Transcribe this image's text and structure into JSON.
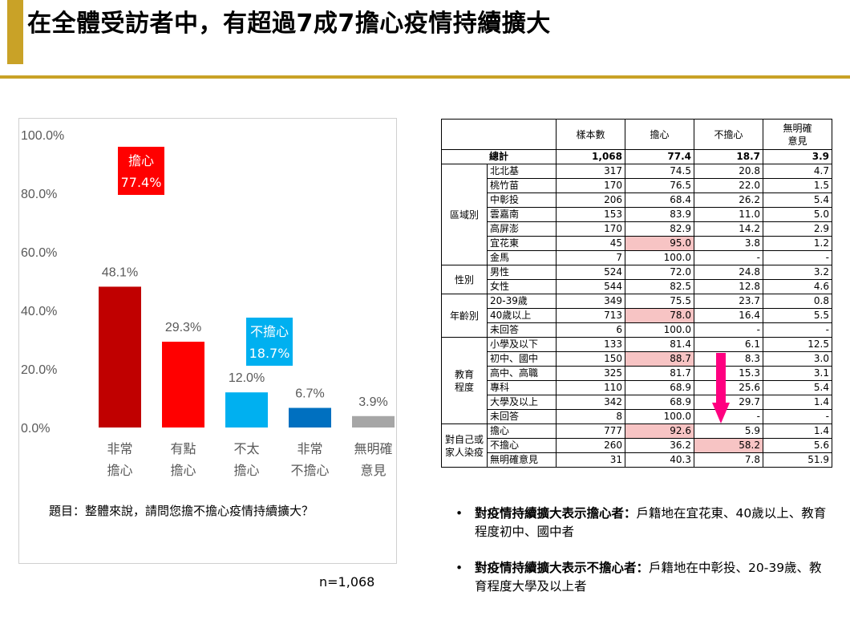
{
  "page": {
    "title": "在全體受訪者中，有超過7成7擔心疫情持續擴大",
    "question": "題目：整體來說，請問您擔不擔心疫情持續擴大？",
    "sample_size": "n=1,068"
  },
  "colors": {
    "accent": "#c9a227",
    "bars": [
      "#c00000",
      "#ff0000",
      "#00b0f0",
      "#0070c0",
      "#a6a6a6"
    ],
    "worry_callout": "#ff0000",
    "not_worry_callout": "#00b0f0",
    "highlight": "#f7c4c4",
    "arrow": "#ff0080"
  },
  "chart_data": {
    "type": "bar",
    "categories": [
      [
        "非常",
        "擔心"
      ],
      [
        "有點",
        "擔心"
      ],
      [
        "不太",
        "擔心"
      ],
      [
        "非常",
        "不擔心"
      ],
      [
        "無明確",
        "意見"
      ]
    ],
    "values": [
      48.1,
      29.3,
      12.0,
      6.7,
      3.9
    ],
    "value_labels": [
      "48.1%",
      "29.3%",
      "12.0%",
      "6.7%",
      "3.9%"
    ],
    "y_ticks": [
      "0.0%",
      "20.0%",
      "40.0%",
      "60.0%",
      "80.0%",
      "100.0%"
    ],
    "ylim": [
      0,
      100
    ],
    "grid": false,
    "annotations": [
      {
        "label": "擔心",
        "value": "77.4%"
      },
      {
        "label": "不擔心",
        "value": "18.7%"
      }
    ]
  },
  "table": {
    "headers": [
      "樣本數",
      "擔心",
      "不擔心",
      "無明確\n意見"
    ],
    "total": {
      "label": "總計",
      "n": "1,068",
      "worry": "77.4",
      "not_worry": "18.7",
      "no_opinion": "3.9"
    },
    "groups": [
      {
        "name": "區域別",
        "rows": [
          {
            "label": "北北基",
            "n": "317",
            "worry": "74.5",
            "not_worry": "20.8",
            "no_opinion": "4.7"
          },
          {
            "label": "桃竹苗",
            "n": "170",
            "worry": "76.5",
            "not_worry": "22.0",
            "no_opinion": "1.5"
          },
          {
            "label": "中彰投",
            "n": "206",
            "worry": "68.4",
            "not_worry": "26.2",
            "no_opinion": "5.4"
          },
          {
            "label": "雲嘉南",
            "n": "153",
            "worry": "83.9",
            "not_worry": "11.0",
            "no_opinion": "5.0"
          },
          {
            "label": "高屏澎",
            "n": "170",
            "worry": "82.9",
            "not_worry": "14.2",
            "no_opinion": "2.9"
          },
          {
            "label": "宜花東",
            "n": "45",
            "worry": "95.0",
            "not_worry": "3.8",
            "no_opinion": "1.2",
            "hl": "worry"
          },
          {
            "label": "金馬",
            "n": "7",
            "worry": "100.0",
            "not_worry": "-",
            "no_opinion": "-"
          }
        ]
      },
      {
        "name": "性別",
        "rows": [
          {
            "label": "男性",
            "n": "524",
            "worry": "72.0",
            "not_worry": "24.8",
            "no_opinion": "3.2"
          },
          {
            "label": "女性",
            "n": "544",
            "worry": "82.5",
            "not_worry": "12.8",
            "no_opinion": "4.6"
          }
        ]
      },
      {
        "name": "年齡別",
        "rows": [
          {
            "label": "20-39歲",
            "n": "349",
            "worry": "75.5",
            "not_worry": "23.7",
            "no_opinion": "0.8"
          },
          {
            "label": "40歲以上",
            "n": "713",
            "worry": "78.0",
            "not_worry": "16.4",
            "no_opinion": "5.5",
            "hl": "worry"
          },
          {
            "label": "未回答",
            "n": "6",
            "worry": "100.0",
            "not_worry": "-",
            "no_opinion": "-"
          }
        ]
      },
      {
        "name": "教育\n程度",
        "rows": [
          {
            "label": "小學及以下",
            "n": "133",
            "worry": "81.4",
            "not_worry": "6.1",
            "no_opinion": "12.5"
          },
          {
            "label": "初中、國中",
            "n": "150",
            "worry": "88.7",
            "not_worry": "8.3",
            "no_opinion": "3.0",
            "hl": "worry"
          },
          {
            "label": "高中、高職",
            "n": "325",
            "worry": "81.7",
            "not_worry": "15.3",
            "no_opinion": "3.1"
          },
          {
            "label": "專科",
            "n": "110",
            "worry": "68.9",
            "not_worry": "25.6",
            "no_opinion": "5.4"
          },
          {
            "label": "大學及以上",
            "n": "342",
            "worry": "68.9",
            "not_worry": "29.7",
            "no_opinion": "1.4"
          },
          {
            "label": "未回答",
            "n": "8",
            "worry": "100.0",
            "not_worry": "-",
            "no_opinion": "-"
          }
        ]
      },
      {
        "name": "對自己或\n家人染疫",
        "rows": [
          {
            "label": "擔心",
            "n": "777",
            "worry": "92.6",
            "not_worry": "5.9",
            "no_opinion": "1.4",
            "hl": "worry"
          },
          {
            "label": "不擔心",
            "n": "260",
            "worry": "36.2",
            "not_worry": "58.2",
            "no_opinion": "5.6",
            "hl": "not_worry"
          },
          {
            "label": "無明確意見",
            "n": "31",
            "worry": "40.3",
            "not_worry": "7.8",
            "no_opinion": "51.9"
          }
        ]
      }
    ]
  },
  "notes": [
    {
      "bullet": "•",
      "bold": "對疫情持續擴大表示擔心者：",
      "text": "戶籍地在宜花東、40歲以上、教育程度初中、國中者"
    },
    {
      "bullet": "•",
      "bold": "對疫情持續擴大表示不擔心者：",
      "text": "戶籍地在中彰投、20-39歲、教育程度大學及以上者"
    }
  ]
}
